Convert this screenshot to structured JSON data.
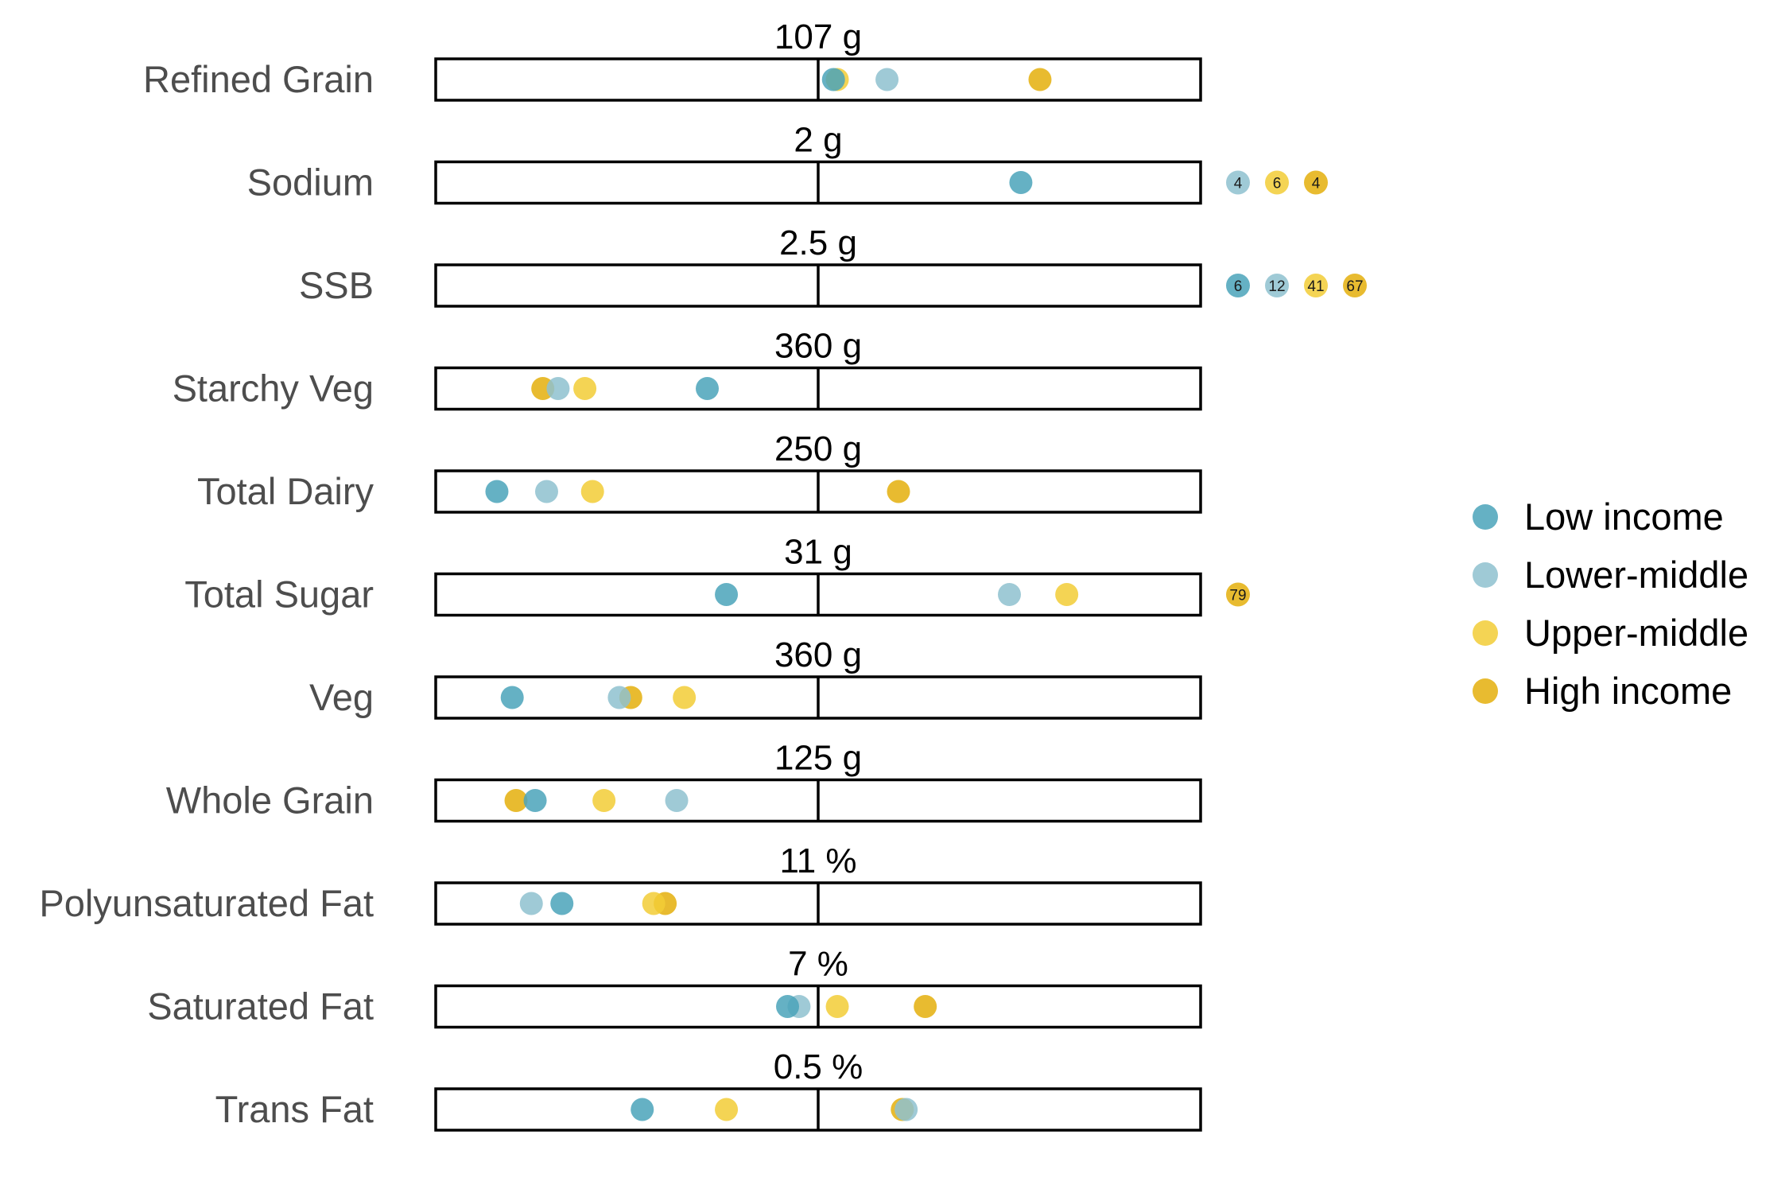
{
  "chart_data": {
    "type": "scatter",
    "description_axis": "each row: position relative to target (0 = none, 1 = target, 2 = twice target)",
    "xlim": [
      0,
      2
    ],
    "legend_position": "right",
    "series": [
      {
        "name": "Low income",
        "color": "#4aa3ba",
        "opacity": 0.85
      },
      {
        "name": "Lower-middle",
        "color": "#8ec1cf",
        "opacity": 0.85
      },
      {
        "name": "Upper-middle",
        "color": "#f2cd36",
        "opacity": 0.85
      },
      {
        "name": "High income",
        "color": "#e6b41a",
        "opacity": 0.9
      }
    ],
    "rows": [
      {
        "label": "Refined Grain",
        "target": "107 g",
        "points": [
          1.04,
          1.18,
          1.05,
          1.58
        ],
        "off_scale": [
          null,
          null,
          null,
          null
        ]
      },
      {
        "label": "Sodium",
        "target": "2 g",
        "points": [
          1.53,
          null,
          null,
          null
        ],
        "off_scale": [
          null,
          "4",
          "6",
          "4"
        ]
      },
      {
        "label": "SSB",
        "target": "2.5 g",
        "points": [
          null,
          null,
          null,
          null
        ],
        "off_scale": [
          "6",
          "12",
          "41",
          "67"
        ]
      },
      {
        "label": "Starchy Veg",
        "target": "360 g",
        "points": [
          0.71,
          0.32,
          0.39,
          0.28
        ],
        "off_scale": [
          null,
          null,
          null,
          null
        ]
      },
      {
        "label": "Total Dairy",
        "target": "250 g",
        "points": [
          0.16,
          0.29,
          0.41,
          1.21
        ],
        "off_scale": [
          null,
          null,
          null,
          null
        ]
      },
      {
        "label": "Total Sugar",
        "target": "31 g",
        "points": [
          0.76,
          1.5,
          1.65,
          null
        ],
        "off_scale": [
          null,
          null,
          null,
          "79"
        ]
      },
      {
        "label": "Veg",
        "target": "360 g",
        "points": [
          0.2,
          0.48,
          0.65,
          0.51
        ],
        "off_scale": [
          null,
          null,
          null,
          null
        ]
      },
      {
        "label": "Whole Grain",
        "target": "125 g",
        "points": [
          0.26,
          0.63,
          0.44,
          0.21
        ],
        "off_scale": [
          null,
          null,
          null,
          null
        ]
      },
      {
        "label": "Polyunsaturated Fat",
        "target": "11 %",
        "points": [
          0.33,
          0.25,
          0.57,
          0.6
        ],
        "off_scale": [
          null,
          null,
          null,
          null
        ]
      },
      {
        "label": "Saturated Fat",
        "target": "7 %",
        "points": [
          0.92,
          0.95,
          1.05,
          1.28
        ],
        "off_scale": [
          null,
          null,
          null,
          null
        ]
      },
      {
        "label": "Trans Fat",
        "target": "0.5 %",
        "points": [
          0.54,
          1.23,
          0.76,
          1.22
        ],
        "off_scale": [
          null,
          null,
          null,
          null
        ]
      }
    ]
  }
}
